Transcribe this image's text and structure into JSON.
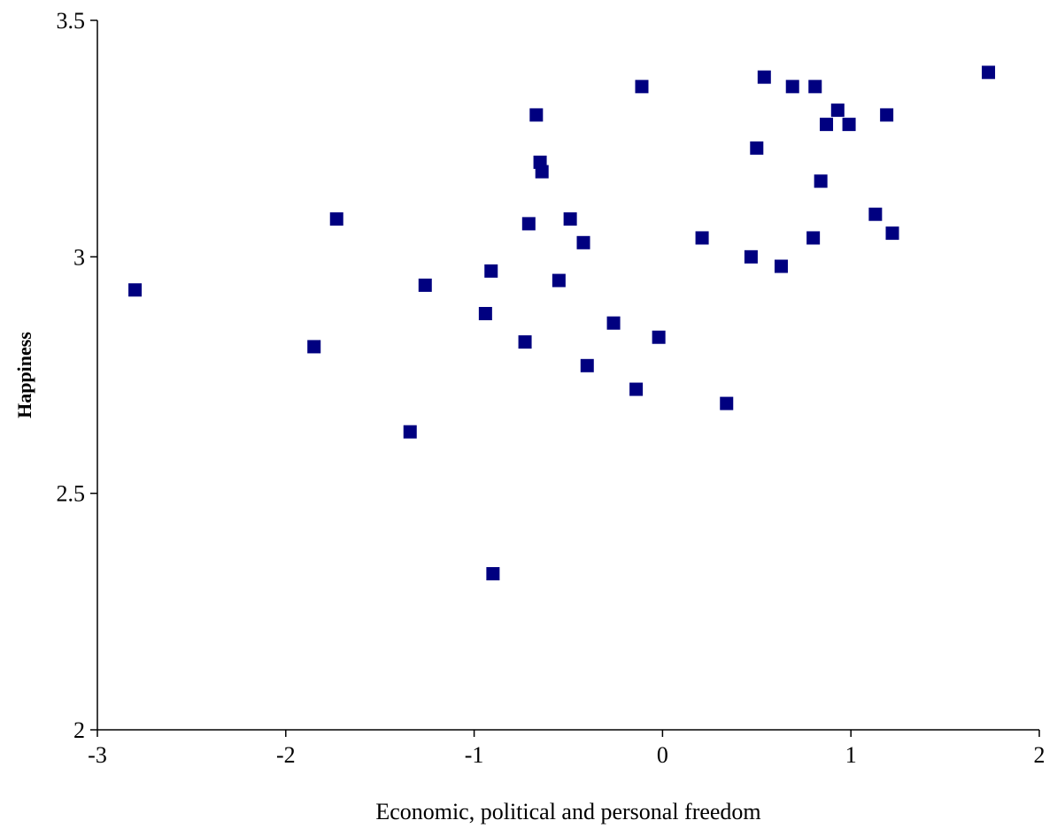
{
  "chart_data": {
    "type": "scatter",
    "title": "",
    "xlabel": "Economic, political and personal freedom",
    "ylabel": "Happiness",
    "xlim": [
      -3,
      2
    ],
    "ylim": [
      2,
      3.5
    ],
    "x_ticks": [
      "-3",
      "-2",
      "-1",
      "0",
      "1",
      "2"
    ],
    "y_ticks": [
      "2",
      "2.5",
      "3",
      "3.5"
    ],
    "grid": false,
    "legend": "none",
    "marker": "square",
    "marker_color": "#000080",
    "points": [
      {
        "x": -2.8,
        "y": 2.93
      },
      {
        "x": -1.85,
        "y": 2.81
      },
      {
        "x": -1.73,
        "y": 3.08
      },
      {
        "x": -1.34,
        "y": 2.63
      },
      {
        "x": -1.26,
        "y": 2.94
      },
      {
        "x": -0.94,
        "y": 2.88
      },
      {
        "x": -0.91,
        "y": 2.97
      },
      {
        "x": -0.9,
        "y": 2.33
      },
      {
        "x": -0.73,
        "y": 2.82
      },
      {
        "x": -0.71,
        "y": 3.07
      },
      {
        "x": -0.67,
        "y": 3.3
      },
      {
        "x": -0.65,
        "y": 3.2
      },
      {
        "x": -0.64,
        "y": 3.18
      },
      {
        "x": -0.55,
        "y": 2.95
      },
      {
        "x": -0.49,
        "y": 3.08
      },
      {
        "x": -0.42,
        "y": 3.03
      },
      {
        "x": -0.4,
        "y": 2.77
      },
      {
        "x": -0.26,
        "y": 2.86
      },
      {
        "x": -0.14,
        "y": 2.72
      },
      {
        "x": -0.11,
        "y": 3.36
      },
      {
        "x": -0.02,
        "y": 2.83
      },
      {
        "x": 0.21,
        "y": 3.04
      },
      {
        "x": 0.34,
        "y": 2.69
      },
      {
        "x": 0.47,
        "y": 3.0
      },
      {
        "x": 0.5,
        "y": 3.23
      },
      {
        "x": 0.54,
        "y": 3.38
      },
      {
        "x": 0.63,
        "y": 2.98
      },
      {
        "x": 0.69,
        "y": 3.36
      },
      {
        "x": 0.8,
        "y": 3.04
      },
      {
        "x": 0.81,
        "y": 3.36
      },
      {
        "x": 0.84,
        "y": 3.16
      },
      {
        "x": 0.87,
        "y": 3.28
      },
      {
        "x": 0.93,
        "y": 3.31
      },
      {
        "x": 0.99,
        "y": 3.28
      },
      {
        "x": 1.13,
        "y": 3.09
      },
      {
        "x": 1.19,
        "y": 3.3
      },
      {
        "x": 1.22,
        "y": 3.05
      },
      {
        "x": 1.73,
        "y": 3.39
      }
    ]
  }
}
